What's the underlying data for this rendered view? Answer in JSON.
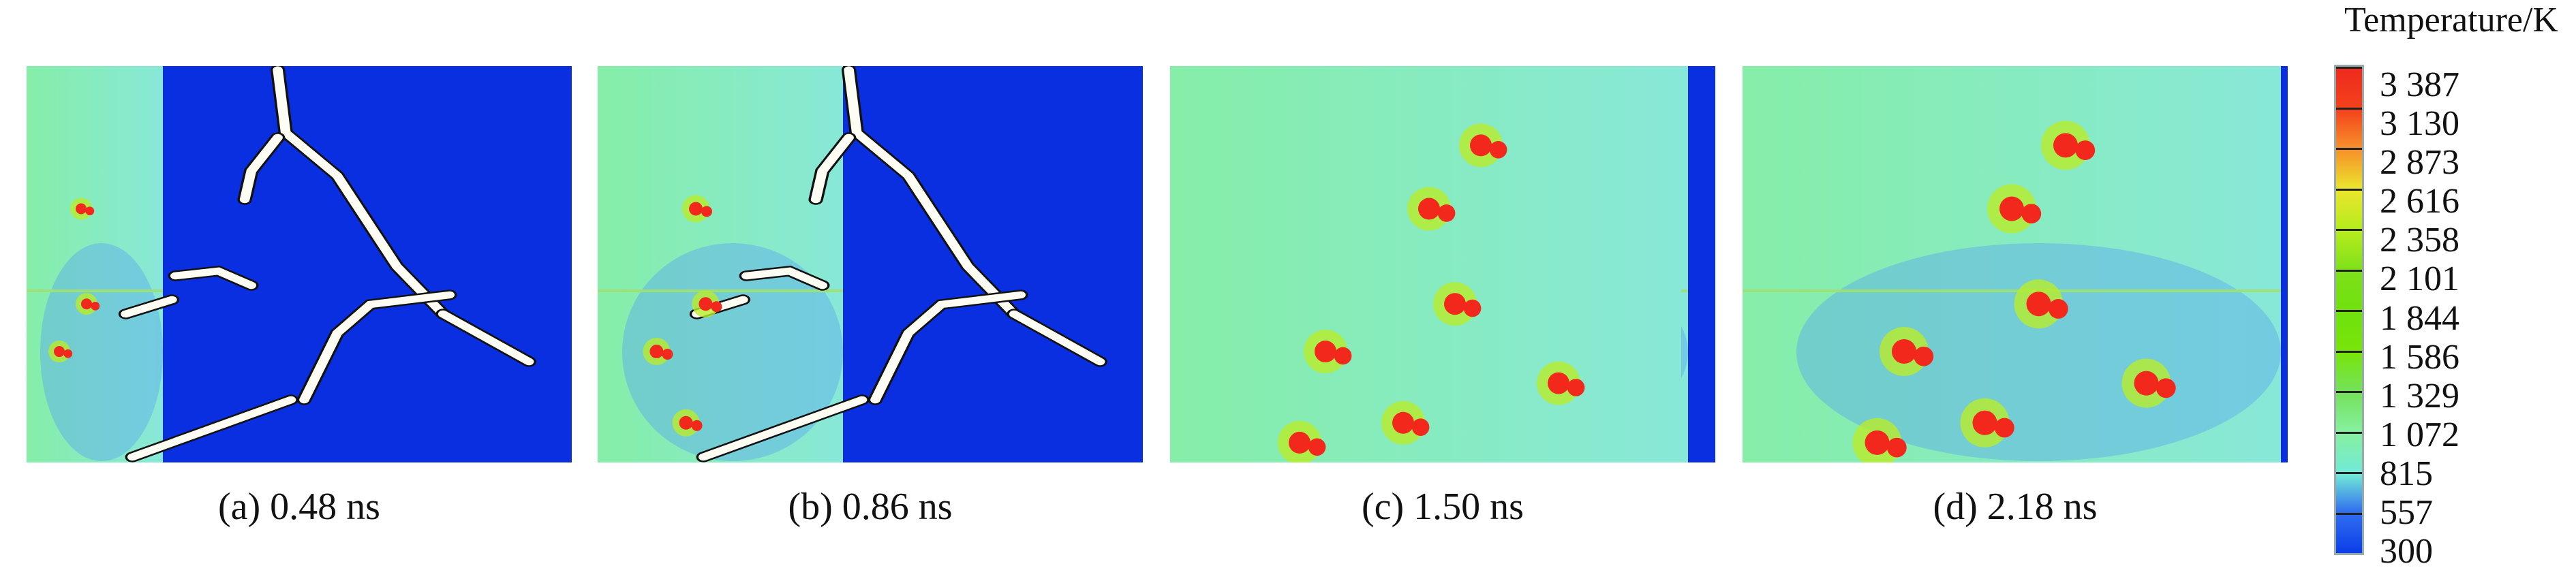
{
  "panels": [
    {
      "label": "(a) 0.48 ns",
      "time_ns": 0.48
    },
    {
      "label": "(b) 0.86 ns",
      "time_ns": 0.86
    },
    {
      "label": "(c) 1.50 ns",
      "time_ns": 1.5
    },
    {
      "label": "(d) 2.18 ns",
      "time_ns": 2.18
    }
  ],
  "colorbar": {
    "title": "Temperature/K",
    "ticks": [
      "3 387",
      "3 130",
      "2 873",
      "2 616",
      "2 358",
      "2 101",
      "1 844",
      "1 586",
      "1 329",
      "1 072",
      "815",
      "557",
      "300"
    ],
    "colors": [
      "#ee2a1e",
      "#f3421c",
      "#f7902a",
      "#eae52c",
      "#b6ec1c",
      "#7ee01a",
      "#6fe10c",
      "#78e50a",
      "#74e25a",
      "#86f0a0",
      "#72ead6",
      "#2f6cf0",
      "#0b3ee8"
    ]
  },
  "colors": {
    "cold": "#0a2fe0",
    "warm": "#8cf0c0",
    "hot": "#f2281c",
    "crack": "#fdfdf4"
  }
}
